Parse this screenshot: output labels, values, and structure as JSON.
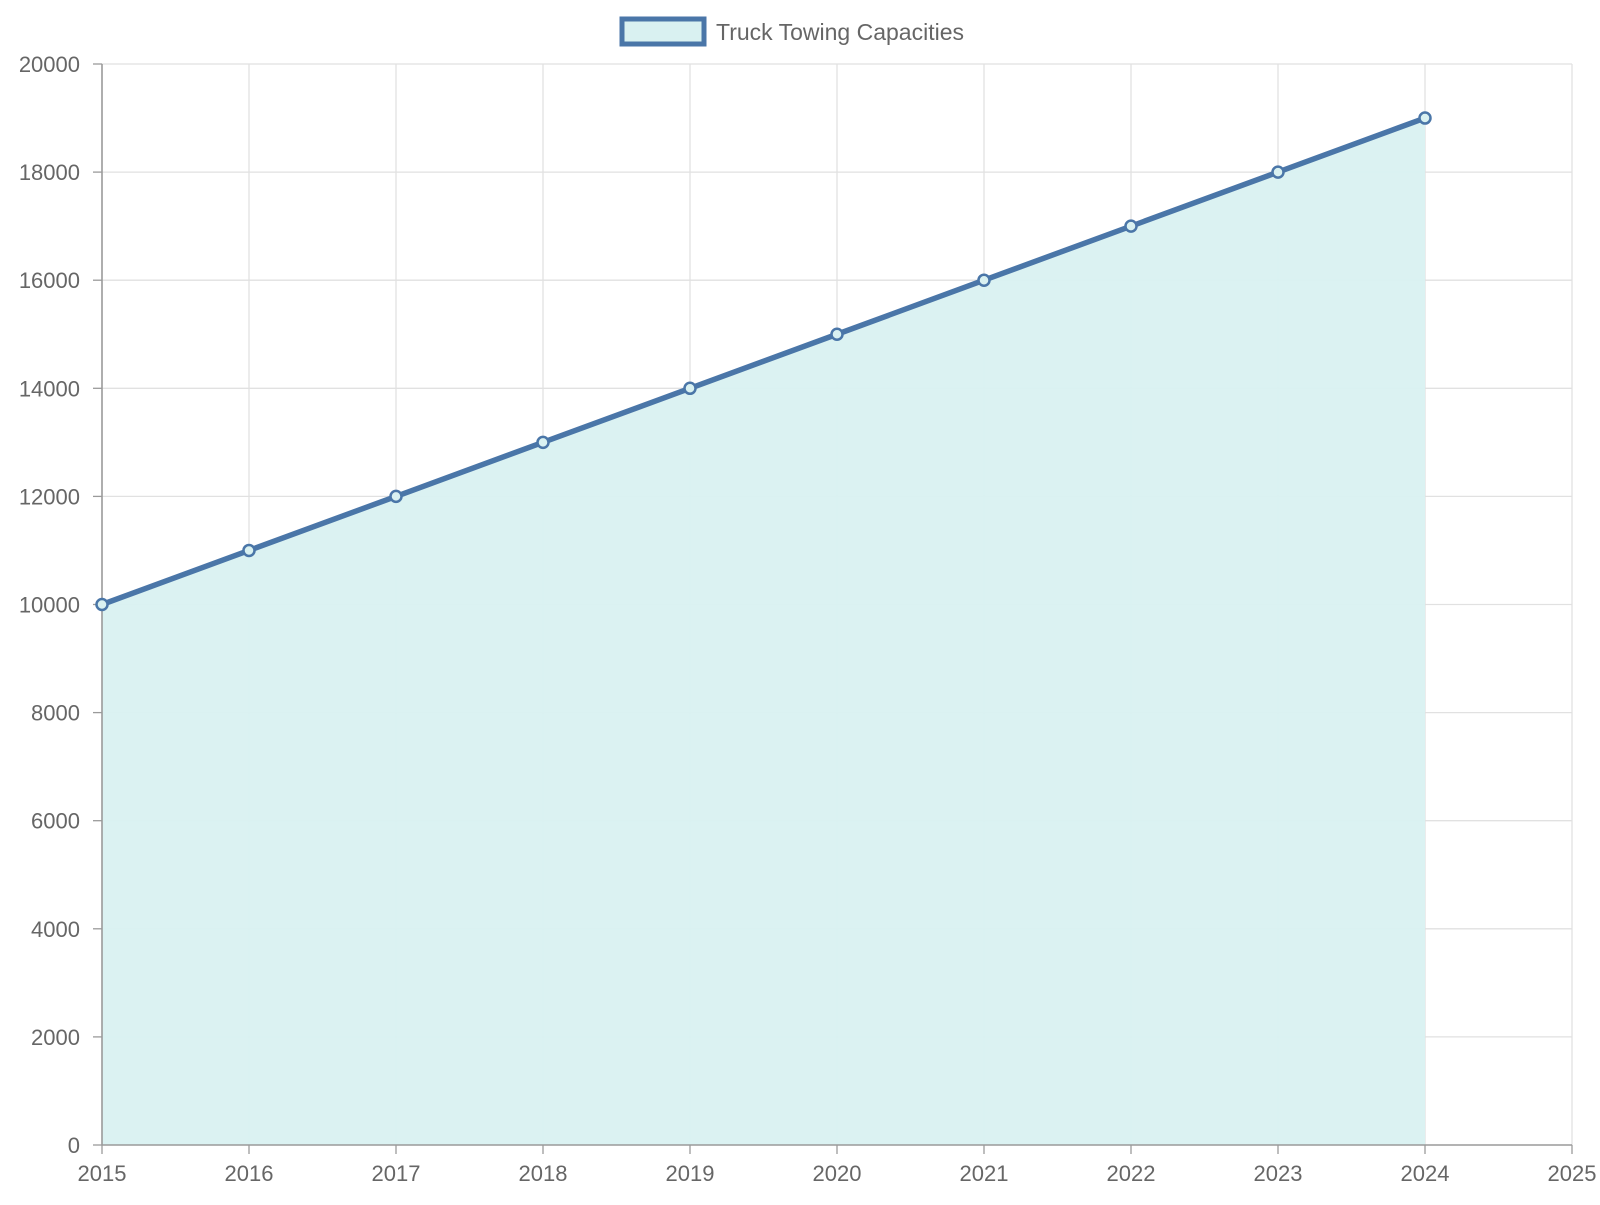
{
  "chart_data": {
    "type": "area",
    "title": "",
    "xlabel": "",
    "ylabel": "",
    "legend": {
      "position": "top",
      "entries": [
        "Truck Towing Capacities"
      ]
    },
    "grid": true,
    "x": [
      2015,
      2016,
      2017,
      2018,
      2019,
      2020,
      2021,
      2022,
      2023,
      2024
    ],
    "x_ticks": [
      "2015",
      "2016",
      "2017",
      "2018",
      "2019",
      "2020",
      "2021",
      "2022",
      "2023",
      "2024",
      "2025"
    ],
    "xlim": [
      2015,
      2025
    ],
    "y_ticks": [
      "0",
      "2000",
      "4000",
      "6000",
      "8000",
      "10000",
      "12000",
      "14000",
      "16000",
      "18000",
      "20000"
    ],
    "ylim": [
      0,
      20000
    ],
    "series": [
      {
        "name": "Truck Towing Capacities",
        "values": [
          10000,
          11000,
          12000,
          13000,
          14000,
          15000,
          16000,
          17000,
          18000,
          19000
        ],
        "line_color": "#4a76a8",
        "fill_color": "#d9f1f1"
      }
    ]
  }
}
